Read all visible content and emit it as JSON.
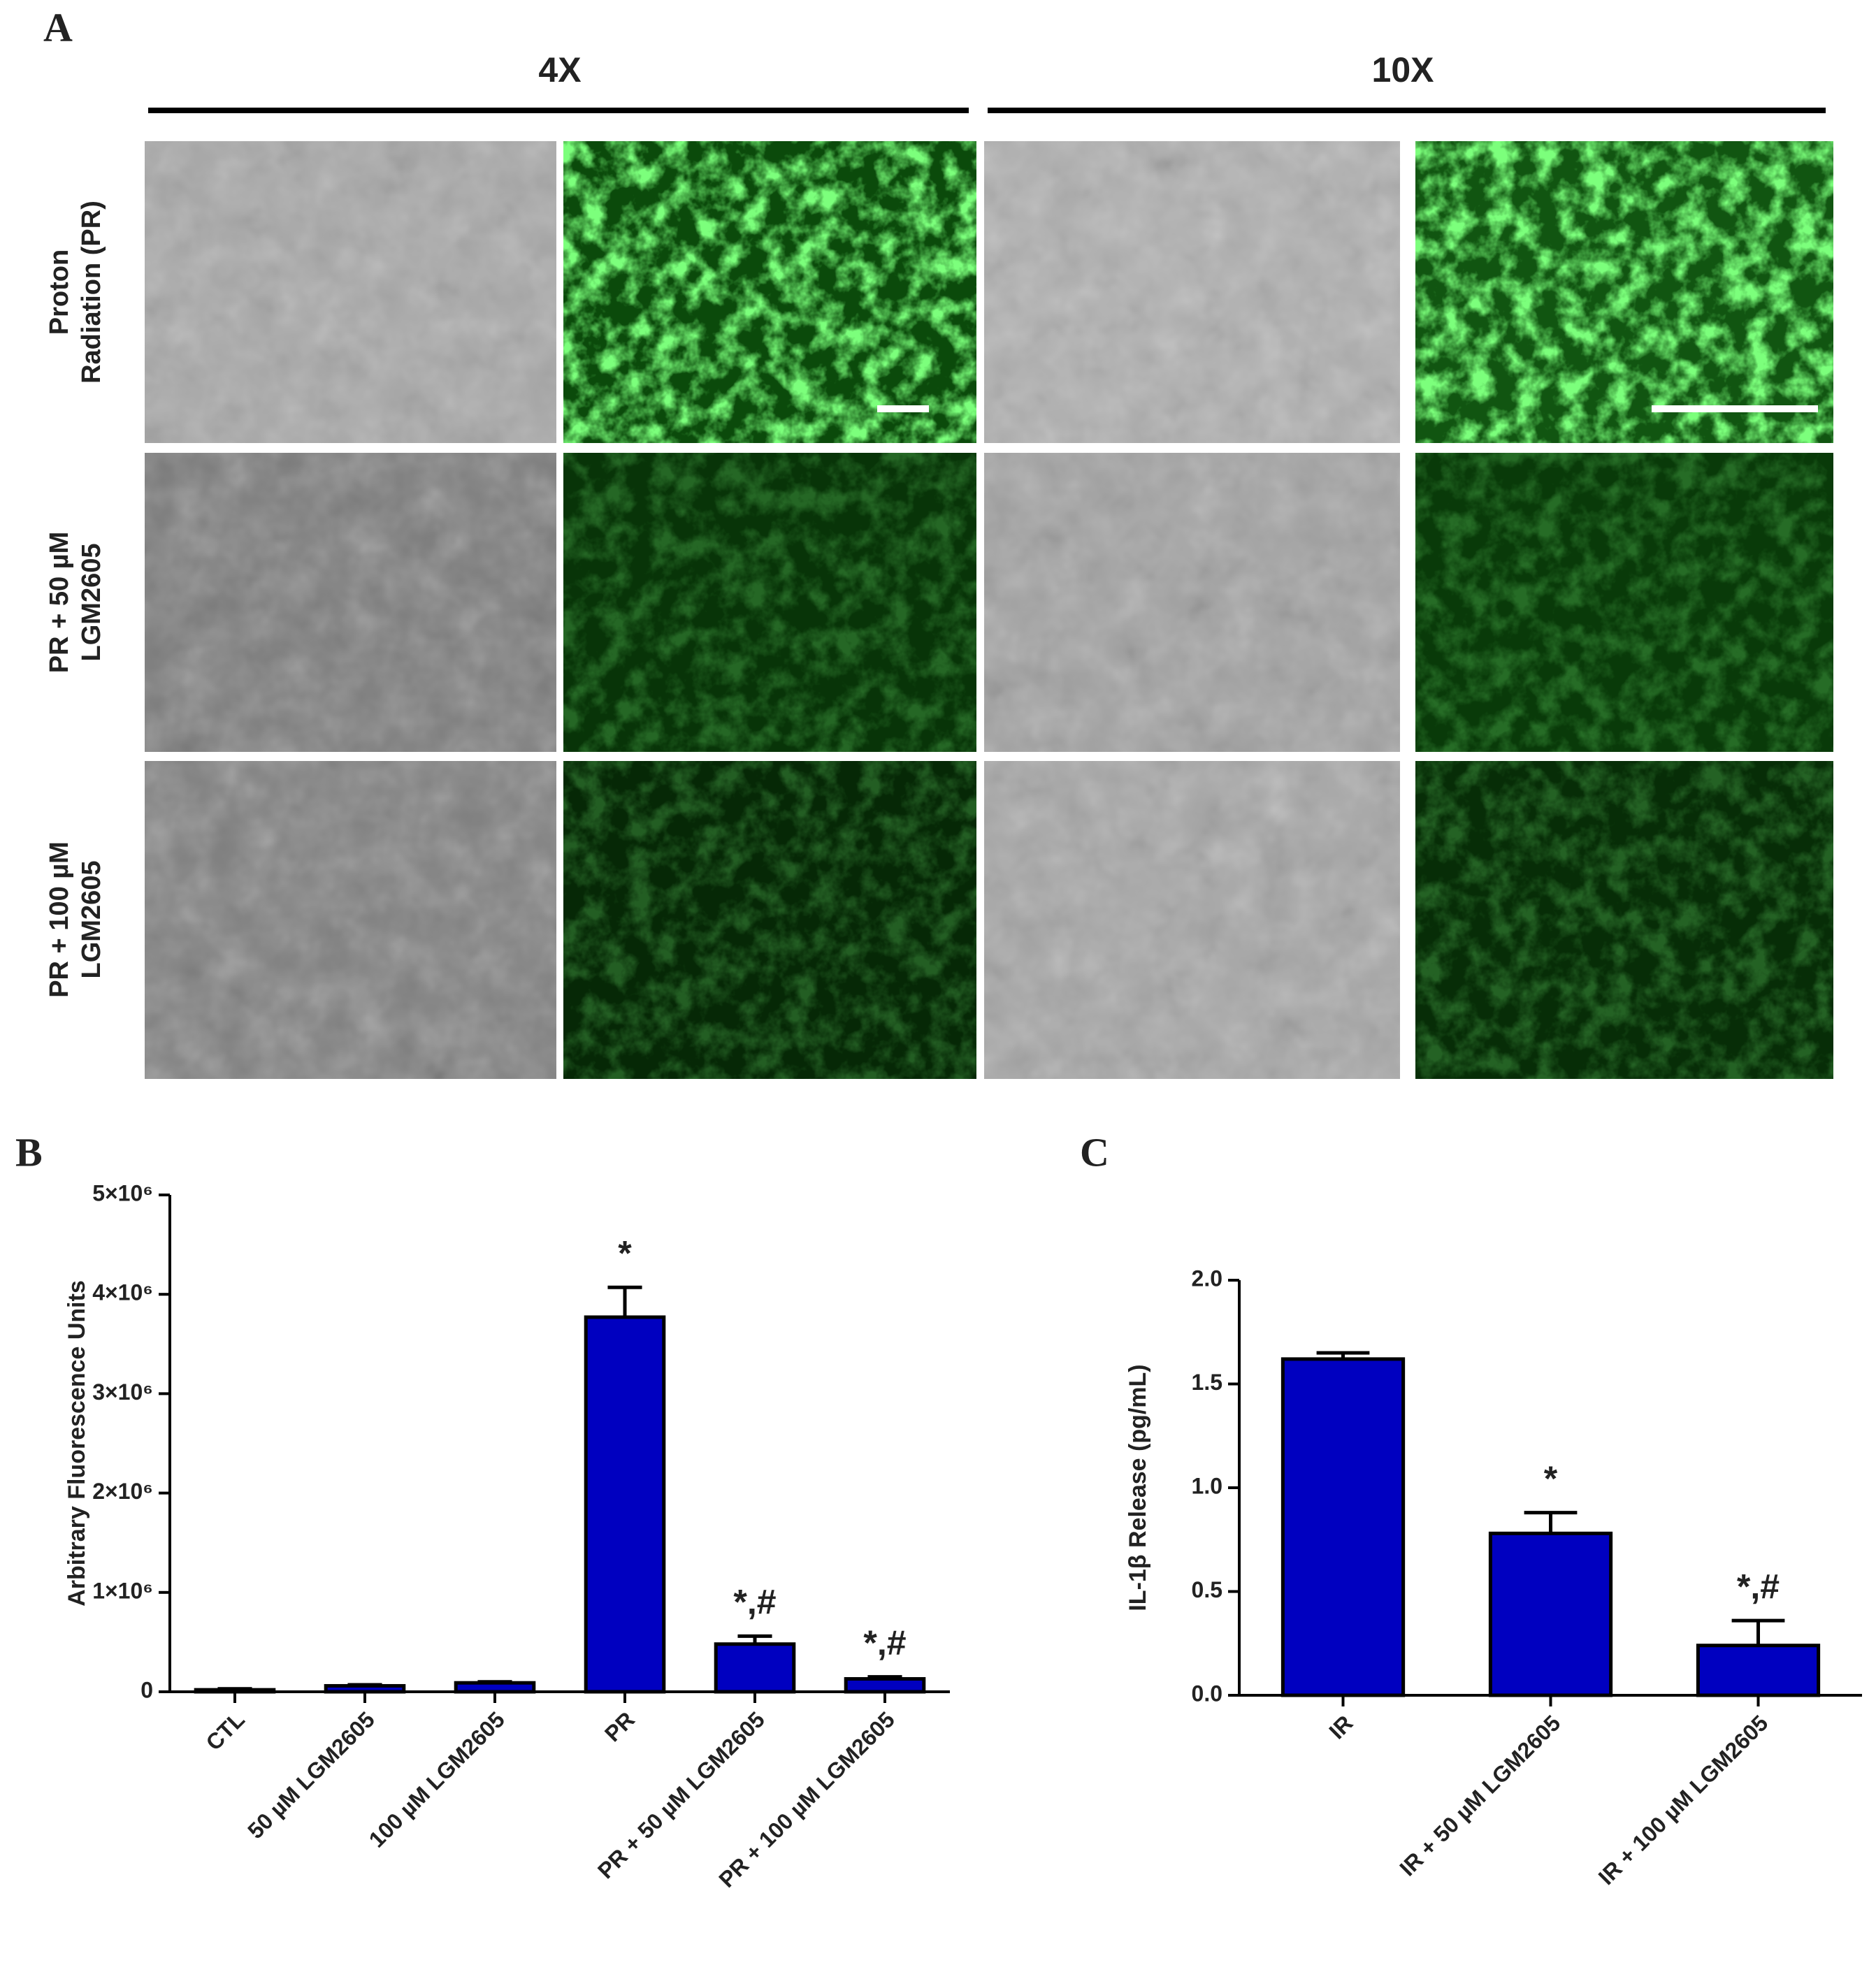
{
  "figure": {
    "panel_a": "A",
    "panel_b": "B",
    "panel_c": "C",
    "columns": [
      "4X",
      "10X"
    ],
    "rows": [
      [
        "Proton",
        "Radiation (PR)"
      ],
      [
        "PR + 50 µM",
        "LGM2605"
      ],
      [
        "PR + 100 µM",
        "LGM2605"
      ]
    ]
  },
  "chart_data": [
    {
      "type": "bar",
      "ylabel": "Arbitrary Fluorescence Units",
      "categories": [
        "CTL",
        "50 µM LGM2605",
        "100 µM LGM2605",
        "PR",
        "PR + 50 µM LGM2605",
        "PR + 100 µM LGM2605"
      ],
      "values": [
        20000,
        60000,
        90000,
        3770000,
        480000,
        130000
      ],
      "errors": [
        10000,
        10000,
        10000,
        300000,
        80000,
        20000
      ],
      "significance": [
        null,
        null,
        null,
        "*",
        "*,#",
        "*,#"
      ],
      "color": "#0000c0",
      "ylim": [
        0,
        5000000
      ],
      "yticks": [
        0,
        {
          "value": 1000000,
          "label": "1×10⁶"
        },
        {
          "value": 2000000,
          "label": "2×10⁶"
        },
        {
          "value": 3000000,
          "label": "3×10⁶"
        },
        {
          "value": 4000000,
          "label": "4×10⁶"
        },
        {
          "value": 5000000,
          "label": "5×10⁶"
        }
      ]
    },
    {
      "type": "bar",
      "ylabel": "IL-1β Release (pg/mL)",
      "categories": [
        "IR",
        "IR + 50 µM LGM2605",
        "IR + 100 µM LGM2605"
      ],
      "values": [
        1.62,
        0.78,
        0.24
      ],
      "errors": [
        0.03,
        0.1,
        0.12
      ],
      "significance": [
        null,
        "*",
        "*,#"
      ],
      "color": "#0000c0",
      "ylim": [
        0,
        2.0
      ],
      "yticks": [
        {
          "value": 0,
          "label": "0.0"
        },
        {
          "value": 0.5,
          "label": "0.5"
        },
        {
          "value": 1.0,
          "label": "1.0"
        },
        {
          "value": 1.5,
          "label": "1.5"
        },
        {
          "value": 2.0,
          "label": "2.0"
        }
      ]
    }
  ]
}
